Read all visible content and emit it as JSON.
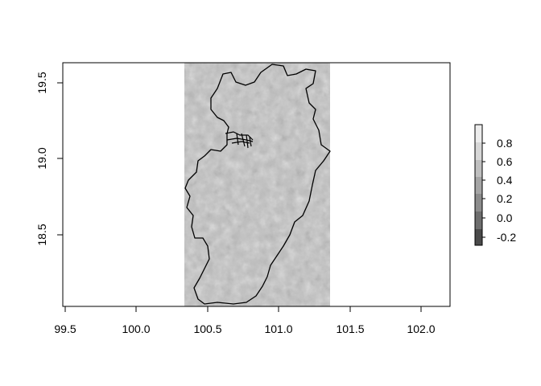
{
  "map": {
    "x_ticks": [
      "99.5",
      "100.0",
      "100.5",
      "101.0",
      "101.5",
      "102.0"
    ],
    "y_ticks": [
      "18.5",
      "19.0",
      "19.5"
    ],
    "xlim": [
      99.5,
      102.2
    ],
    "ylim": [
      18.0,
      19.6
    ],
    "raster_extent_x": [
      100.34,
      101.36
    ],
    "raster_color": "#bdbdbd",
    "boundary_color": "#000000"
  },
  "legend": {
    "labels": [
      "0.8",
      "0.6",
      "0.4",
      "0.2",
      "0.0",
      "-0.2"
    ],
    "colors": [
      "#ececec",
      "#d7d7d7",
      "#bfbfbf",
      "#a5a5a5",
      "#8c8c8c",
      "#6e6e6e",
      "#4a4a4a"
    ]
  }
}
